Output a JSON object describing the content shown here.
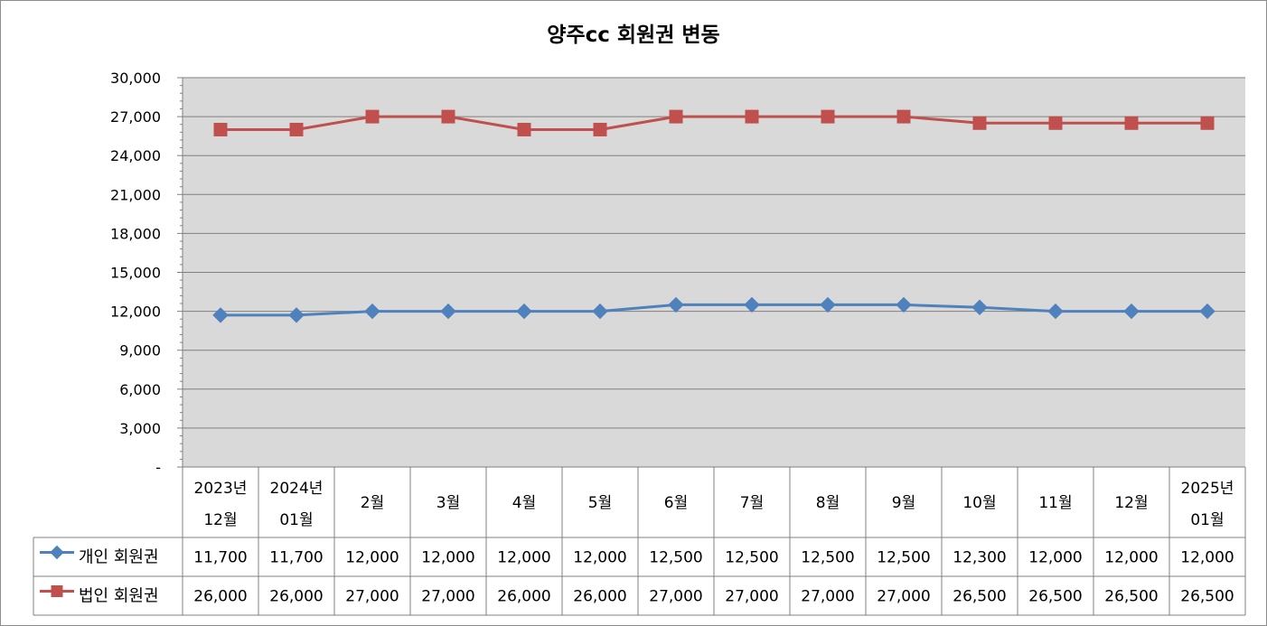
{
  "chart_data": {
    "type": "line",
    "title": "양주cc 회원권 변동",
    "categories": [
      [
        "2023년",
        "12월"
      ],
      [
        "2024년",
        "01월"
      ],
      [
        "2월"
      ],
      [
        "3월"
      ],
      [
        "4월"
      ],
      [
        "5월"
      ],
      [
        "6월"
      ],
      [
        "7월"
      ],
      [
        "8월"
      ],
      [
        "9월"
      ],
      [
        "10월"
      ],
      [
        "11월"
      ],
      [
        "12월"
      ],
      [
        "2025년",
        "01월"
      ]
    ],
    "ylim": [
      0,
      30000
    ],
    "yticks": [
      {
        "value": 0,
        "label": "-"
      },
      {
        "value": 3000,
        "label": "3,000"
      },
      {
        "value": 6000,
        "label": "6,000"
      },
      {
        "value": 9000,
        "label": "9,000"
      },
      {
        "value": 12000,
        "label": "12,000"
      },
      {
        "value": 15000,
        "label": "15,000"
      },
      {
        "value": 18000,
        "label": "18,000"
      },
      {
        "value": 21000,
        "label": "21,000"
      },
      {
        "value": 24000,
        "label": "24,000"
      },
      {
        "value": 27000,
        "label": "27,000"
      },
      {
        "value": 30000,
        "label": "30,000"
      }
    ],
    "grid": true,
    "legend": "data-table-left",
    "series": [
      {
        "name": "개인 회원권",
        "marker": "diamond",
        "color": "#4f81bd",
        "values": [
          11700,
          11700,
          12000,
          12000,
          12000,
          12000,
          12500,
          12500,
          12500,
          12500,
          12300,
          12000,
          12000,
          12000
        ],
        "labels": [
          "11,700",
          "11,700",
          "12,000",
          "12,000",
          "12,000",
          "12,000",
          "12,500",
          "12,500",
          "12,500",
          "12,500",
          "12,300",
          "12,000",
          "12,000",
          "12,000"
        ]
      },
      {
        "name": "법인 회원권",
        "marker": "square",
        "color": "#c0504d",
        "values": [
          26000,
          26000,
          27000,
          27000,
          26000,
          26000,
          27000,
          27000,
          27000,
          27000,
          26500,
          26500,
          26500,
          26500
        ],
        "labels": [
          "26,000",
          "26,000",
          "27,000",
          "27,000",
          "26,000",
          "26,000",
          "27,000",
          "27,000",
          "27,000",
          "27,000",
          "26,500",
          "26,500",
          "26,500",
          "26,500"
        ]
      }
    ]
  }
}
